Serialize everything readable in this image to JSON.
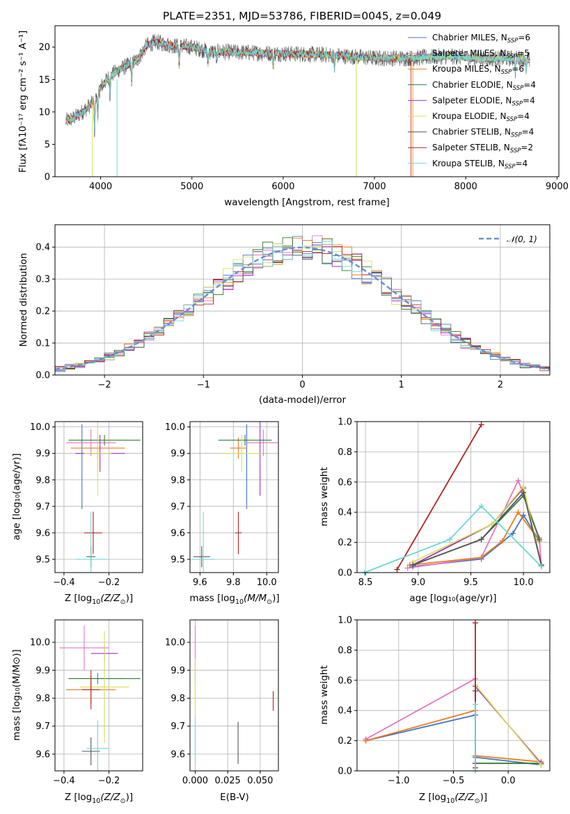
{
  "colors": [
    "#4472c4",
    "#e377c2",
    "#e67e22",
    "#2e7d32",
    "#9b30c9",
    "#d4e157",
    "#555555",
    "#b22222",
    "#6dd6d6"
  ],
  "header": {
    "title": "PLATE=2351, MJD=53786, FIBERID=0045, z=0.049"
  },
  "legend_models": [
    {
      "prefix": "Chabrier MILES, N",
      "sub": "SSP",
      "suffix": "=6"
    },
    {
      "prefix": "Salpeter MILES, N",
      "sub": "SSP",
      "suffix": "=5"
    },
    {
      "prefix": "Kroupa MILES, N",
      "sub": "SSP",
      "suffix": "=6"
    },
    {
      "prefix": "Chabrier ELODIE, N",
      "sub": "SSP",
      "suffix": "=4"
    },
    {
      "prefix": "Salpeter ELODIE, N",
      "sub": "SSP",
      "suffix": "=4"
    },
    {
      "prefix": "Kroupa ELODIE, N",
      "sub": "SSP",
      "suffix": "=4"
    },
    {
      "prefix": "Chabrier STELIB, N",
      "sub": "SSP",
      "suffix": "=4"
    },
    {
      "prefix": "Salpeter STELIB, N",
      "sub": "SSP",
      "suffix": "=2"
    },
    {
      "prefix": "Kroupa STELIB, N",
      "sub": "SSP",
      "suffix": "=4"
    }
  ],
  "chart_data": [
    {
      "type": "line",
      "panel": "spectrum",
      "title": "PLATE=2351, MJD=53786, FIBERID=0045, z=0.049",
      "xlabel": "wavelength [Angstrom, rest frame]",
      "ylabel": "Flux [fλ10⁻¹⁷ erg cm⁻² s⁻¹ A⁻¹]",
      "xlim": [
        3500,
        9020
      ],
      "ylim": [
        0,
        23.3
      ],
      "xticks": [
        4000,
        5000,
        6000,
        7000,
        8000,
        9000
      ],
      "yticks": [
        0,
        5,
        10,
        15,
        20
      ],
      "legend_position": "upper right",
      "continuum": {
        "x": [
          3620,
          3700,
          3800,
          3900,
          3950,
          4000,
          4100,
          4200,
          4300,
          4400,
          4500,
          4600,
          4800,
          5000,
          5200,
          5500,
          6000,
          6500,
          7000,
          7400,
          7800,
          8200,
          8600,
          8700
        ],
        "y": [
          8.6,
          9.0,
          10.0,
          11.2,
          12.0,
          13.8,
          15.5,
          16.5,
          17.2,
          18.0,
          20.2,
          20.8,
          20.2,
          20.0,
          19.3,
          19.2,
          19.0,
          18.8,
          18.3,
          18.3,
          18.6,
          18.2,
          18.3,
          18.0
        ]
      },
      "series_end": [
        8700,
        8700,
        7420,
        8700,
        8700,
        8700,
        8700,
        7400,
        8700
      ]
    },
    {
      "type": "histogram",
      "panel": "residuals",
      "xlabel": "(data-model)/error",
      "ylabel": "Normed distribution",
      "xlim": [
        -2.5,
        2.5
      ],
      "ylim": [
        0,
        0.47
      ],
      "xticks": [
        -2,
        -1,
        0,
        1,
        2
      ],
      "yticks": [
        0.0,
        0.1,
        0.2,
        0.3,
        0.4
      ],
      "reference": {
        "label": "𝒩(0, 1)",
        "mean": 0,
        "sigma": 1
      },
      "bin_width": 0.1
    },
    {
      "type": "scatter",
      "panel": "age-vs-Z",
      "xlabel_pre": "Z [log",
      "xlabel_mid": "(Z/Z",
      "xlabel_post": ")]",
      "ylabel": "age  [log₁₀(age/yr)]",
      "xlim": [
        -0.44,
        -0.05
      ],
      "ylim": [
        9.45,
        10.02
      ],
      "xticks": [
        -0.4,
        -0.2
      ],
      "yticks": [
        9.5,
        9.6,
        9.7,
        9.8,
        9.9,
        10.0
      ],
      "points": [
        {
          "x": -0.32,
          "y": 9.85,
          "xerr": 0.0,
          "yerr": 0.16
        },
        {
          "x": -0.28,
          "y": 9.94,
          "xerr": 0.11,
          "yerr": 0.05
        },
        {
          "x": -0.25,
          "y": 9.92,
          "xerr": 0.12,
          "yerr": 0.04
        },
        {
          "x": -0.22,
          "y": 9.95,
          "xerr": 0.16,
          "yerr": 0.02
        },
        {
          "x": -0.24,
          "y": 9.9,
          "xerr": 0.11,
          "yerr": 0.07
        },
        {
          "x": -0.25,
          "y": 9.9,
          "xerr": 0.06,
          "yerr": 0.16
        },
        {
          "x": -0.28,
          "y": 9.51,
          "xerr": 0.02,
          "yerr": 0.04
        },
        {
          "x": -0.27,
          "y": 9.6,
          "xerr": 0.04,
          "yerr": 0.08
        },
        {
          "x": -0.28,
          "y": 9.5,
          "xerr": 0.07,
          "yerr": 0.18
        }
      ]
    },
    {
      "type": "scatter",
      "panel": "age-vs-mass",
      "xlabel_pre": "mass [log",
      "xlabel_mid": "(M/M",
      "xlabel_post": ")]",
      "xlim": [
        9.54,
        10.07
      ],
      "ylim": [
        9.45,
        10.02
      ],
      "xticks": [
        9.6,
        9.8,
        10.0
      ],
      "yticks": [
        9.5,
        9.6,
        9.7,
        9.8,
        9.9,
        10.0
      ],
      "points": [
        {
          "x": 9.88,
          "y": 9.85,
          "xerr": 0.0,
          "yerr": 0.16
        },
        {
          "x": 9.98,
          "y": 9.94,
          "xerr": 0.1,
          "yerr": 0.05
        },
        {
          "x": 9.83,
          "y": 9.92,
          "xerr": 0.05,
          "yerr": 0.04
        },
        {
          "x": 9.87,
          "y": 9.95,
          "xerr": 0.16,
          "yerr": 0.02
        },
        {
          "x": 9.96,
          "y": 9.9,
          "xerr": 0.0,
          "yerr": 0.16
        },
        {
          "x": 9.85,
          "y": 9.9,
          "xerr": 0.12,
          "yerr": 0.07
        },
        {
          "x": 9.61,
          "y": 9.51,
          "xerr": 0.05,
          "yerr": 0.04
        },
        {
          "x": 9.83,
          "y": 9.6,
          "xerr": 0.02,
          "yerr": 0.08
        },
        {
          "x": 9.62,
          "y": 9.5,
          "xerr": 0.07,
          "yerr": 0.18
        }
      ]
    },
    {
      "type": "line",
      "panel": "mass-weight-vs-age",
      "xlabel": "age  [log₁₀(age/yr)]",
      "ylabel": "mass weight",
      "xlim": [
        8.42,
        10.25
      ],
      "ylim": [
        0,
        1.0
      ],
      "xticks": [
        8.5,
        9.0,
        9.5,
        10.0
      ],
      "yticks": [
        0.0,
        0.2,
        0.4,
        0.6,
        0.8,
        1.0
      ],
      "series": [
        {
          "x": [
            8.95,
            9.6,
            9.9,
            10.0,
            10.15
          ],
          "y": [
            0.04,
            0.09,
            0.26,
            0.38,
            0.21
          ]
        },
        {
          "x": [
            8.9,
            9.6,
            9.95,
            10.15,
            10.17
          ],
          "y": [
            0.03,
            0.1,
            0.61,
            0.23,
            0.04
          ]
        },
        {
          "x": [
            8.92,
            9.6,
            9.8,
            9.95,
            10.15
          ],
          "y": [
            0.05,
            0.1,
            0.21,
            0.4,
            0.21
          ]
        },
        {
          "x": [
            8.95,
            9.6,
            10.0,
            10.15
          ],
          "y": [
            0.05,
            0.22,
            0.51,
            0.22
          ]
        },
        {
          "x": [
            8.95,
            9.7,
            10.0,
            10.17
          ],
          "y": [
            0.05,
            0.32,
            0.56,
            0.05
          ]
        },
        {
          "x": [
            8.95,
            9.7,
            10.0,
            10.17
          ],
          "y": [
            0.07,
            0.32,
            0.57,
            0.04
          ]
        },
        {
          "x": [
            8.95,
            9.6,
            10.0,
            10.17
          ],
          "y": [
            0.05,
            0.22,
            0.53,
            0.05
          ]
        },
        {
          "x": [
            8.8,
            9.6
          ],
          "y": [
            0.02,
            0.98
          ]
        },
        {
          "x": [
            8.49,
            9.3,
            9.6,
            10.17
          ],
          "y": [
            0.0,
            0.22,
            0.44,
            0.04
          ]
        }
      ]
    },
    {
      "type": "scatter",
      "panel": "mass-vs-Z",
      "xlabel_pre": "Z [log",
      "xlabel_mid": "(Z/Z",
      "xlabel_post": ")]",
      "ylabel": "mass [log₁₀(M/M⊙)]",
      "xlim": [
        -0.44,
        -0.05
      ],
      "ylim": [
        9.54,
        10.08
      ],
      "xticks": [
        -0.4,
        -0.2
      ],
      "yticks": [
        9.6,
        9.7,
        9.8,
        9.9,
        10.0
      ],
      "points": [
        {
          "x": -0.25,
          "y": 9.87,
          "xerr": 0.12,
          "yerr": 0.02
        },
        {
          "x": -0.31,
          "y": 9.98,
          "xerr": 0.11,
          "yerr": 0.08
        },
        {
          "x": -0.28,
          "y": 9.83,
          "xerr": 0.11,
          "yerr": 0.05
        },
        {
          "x": -0.22,
          "y": 9.87,
          "xerr": 0.16,
          "yerr": 0.0
        },
        {
          "x": -0.22,
          "y": 9.96,
          "xerr": 0.06,
          "yerr": 0.03
        },
        {
          "x": -0.22,
          "y": 9.84,
          "xerr": 0.11,
          "yerr": 0.2
        },
        {
          "x": -0.28,
          "y": 9.61,
          "xerr": 0.04,
          "yerr": 0.05
        },
        {
          "x": -0.28,
          "y": 9.83,
          "xerr": 0.04,
          "yerr": 0.07
        },
        {
          "x": -0.25,
          "y": 9.62,
          "xerr": 0.05,
          "yerr": 0.1
        }
      ]
    },
    {
      "type": "scatter",
      "panel": "mass-vs-ebv",
      "xlabel": "E(B-V)",
      "xlim": [
        -0.004,
        0.064
      ],
      "ylim": [
        9.54,
        10.08
      ],
      "xticks": [
        0.0,
        0.025,
        0.05
      ],
      "yticks": [
        9.6,
        9.7,
        9.8,
        9.9,
        10.0
      ],
      "points": [
        {
          "x": 0.0,
          "y": 9.87,
          "yerr": 0.02
        },
        {
          "x": 0.0,
          "y": 9.98,
          "yerr": 0.08
        },
        {
          "x": 0.0,
          "y": 9.83,
          "yerr": 0.05
        },
        {
          "x": 0.0,
          "y": 9.87,
          "yerr": 0.0
        },
        {
          "x": 0.0,
          "y": 9.9,
          "yerr": 0.03
        },
        {
          "x": 0.0,
          "y": 9.84,
          "yerr": 0.1
        },
        {
          "x": 0.033,
          "y": 9.64,
          "yerr": 0.075
        },
        {
          "x": 0.06,
          "y": 9.79,
          "yerr": 0.035
        },
        {
          "x": 0.0,
          "y": 9.65,
          "yerr": 0.08
        }
      ]
    },
    {
      "type": "line",
      "panel": "mass-weight-vs-Z",
      "xlabel_pre": "Z [log",
      "xlabel_mid": "(Z/Z",
      "xlabel_post": ")]",
      "ylabel": "mass weight",
      "xlim": [
        -1.38,
        0.38
      ],
      "ylim": [
        0,
        1.0
      ],
      "xticks": [
        -1.0,
        -0.5,
        0.0
      ],
      "yticks": [
        0.0,
        0.2,
        0.4,
        0.6,
        0.8,
        1.0
      ],
      "series": [
        {
          "x": [
            -1.3,
            -0.3,
            -0.3,
            0.3
          ],
          "y": [
            0.2,
            0.37,
            0.09,
            0.04
          ]
        },
        {
          "x": [
            -1.3,
            -0.3
          ],
          "y": [
            0.21,
            0.61
          ]
        },
        {
          "x": [
            -1.3,
            -0.3,
            -0.3,
            0.3
          ],
          "y": [
            0.2,
            0.4,
            0.1,
            0.06
          ]
        },
        {
          "x": [
            -0.3,
            0.3
          ],
          "y": [
            0.05,
            0.05
          ]
        },
        {
          "x": [
            -0.3,
            0.3
          ],
          "y": [
            0.56,
            0.05
          ]
        },
        {
          "x": [
            -0.3,
            0.3
          ],
          "y": [
            0.57,
            0.04
          ]
        },
        {
          "x": [
            -0.3,
            -0.3
          ],
          "y": [
            0.05,
            0.53
          ]
        },
        {
          "x": [
            -0.3,
            -0.3
          ],
          "y": [
            0.02,
            0.98
          ]
        },
        {
          "x": [
            -0.3,
            -0.3
          ],
          "y": [
            0.0,
            0.44
          ]
        }
      ]
    }
  ]
}
